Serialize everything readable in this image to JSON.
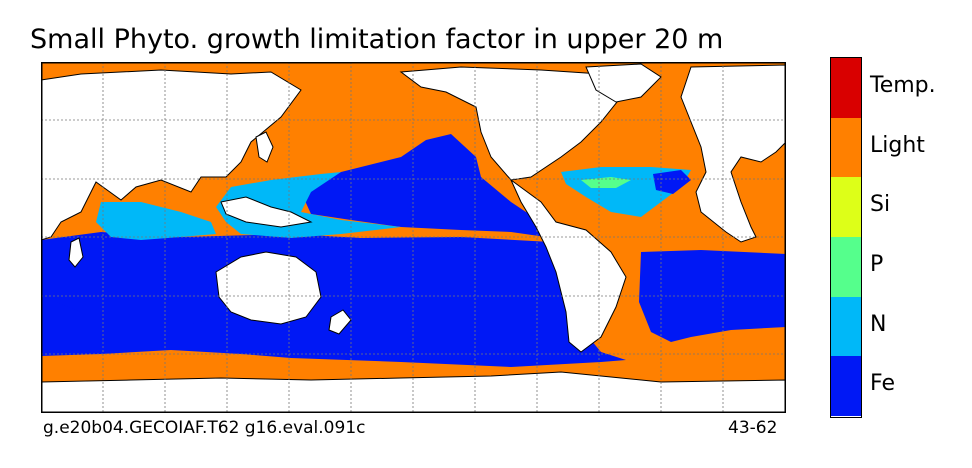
{
  "title": "Small Phyto. growth limitation factor in upper 20 m",
  "footer": {
    "case_name": "g.e20b04.GECOIAF.T62 g16.eval.091c",
    "years": "43-62"
  },
  "colors": {
    "ocean_fe": "#0018f5",
    "ocean_n": "#00b8f8",
    "ocean_p": "#55ff8c",
    "ocean_si": "#ddff18",
    "ocean_light": "#ff8000",
    "ocean_temp": "#d90000",
    "land": "#ffffff",
    "coast": "#000000",
    "grid": "#777777"
  },
  "legend": [
    {
      "label": "Temp.",
      "color": "#d90000"
    },
    {
      "label": "Light",
      "color": "#ff8000"
    },
    {
      "label": "Si",
      "color": "#ddff18"
    },
    {
      "label": "P",
      "color": "#55ff8c"
    },
    {
      "label": "N",
      "color": "#00b8f8"
    },
    {
      "label": "Fe",
      "color": "#0018f5"
    }
  ]
}
